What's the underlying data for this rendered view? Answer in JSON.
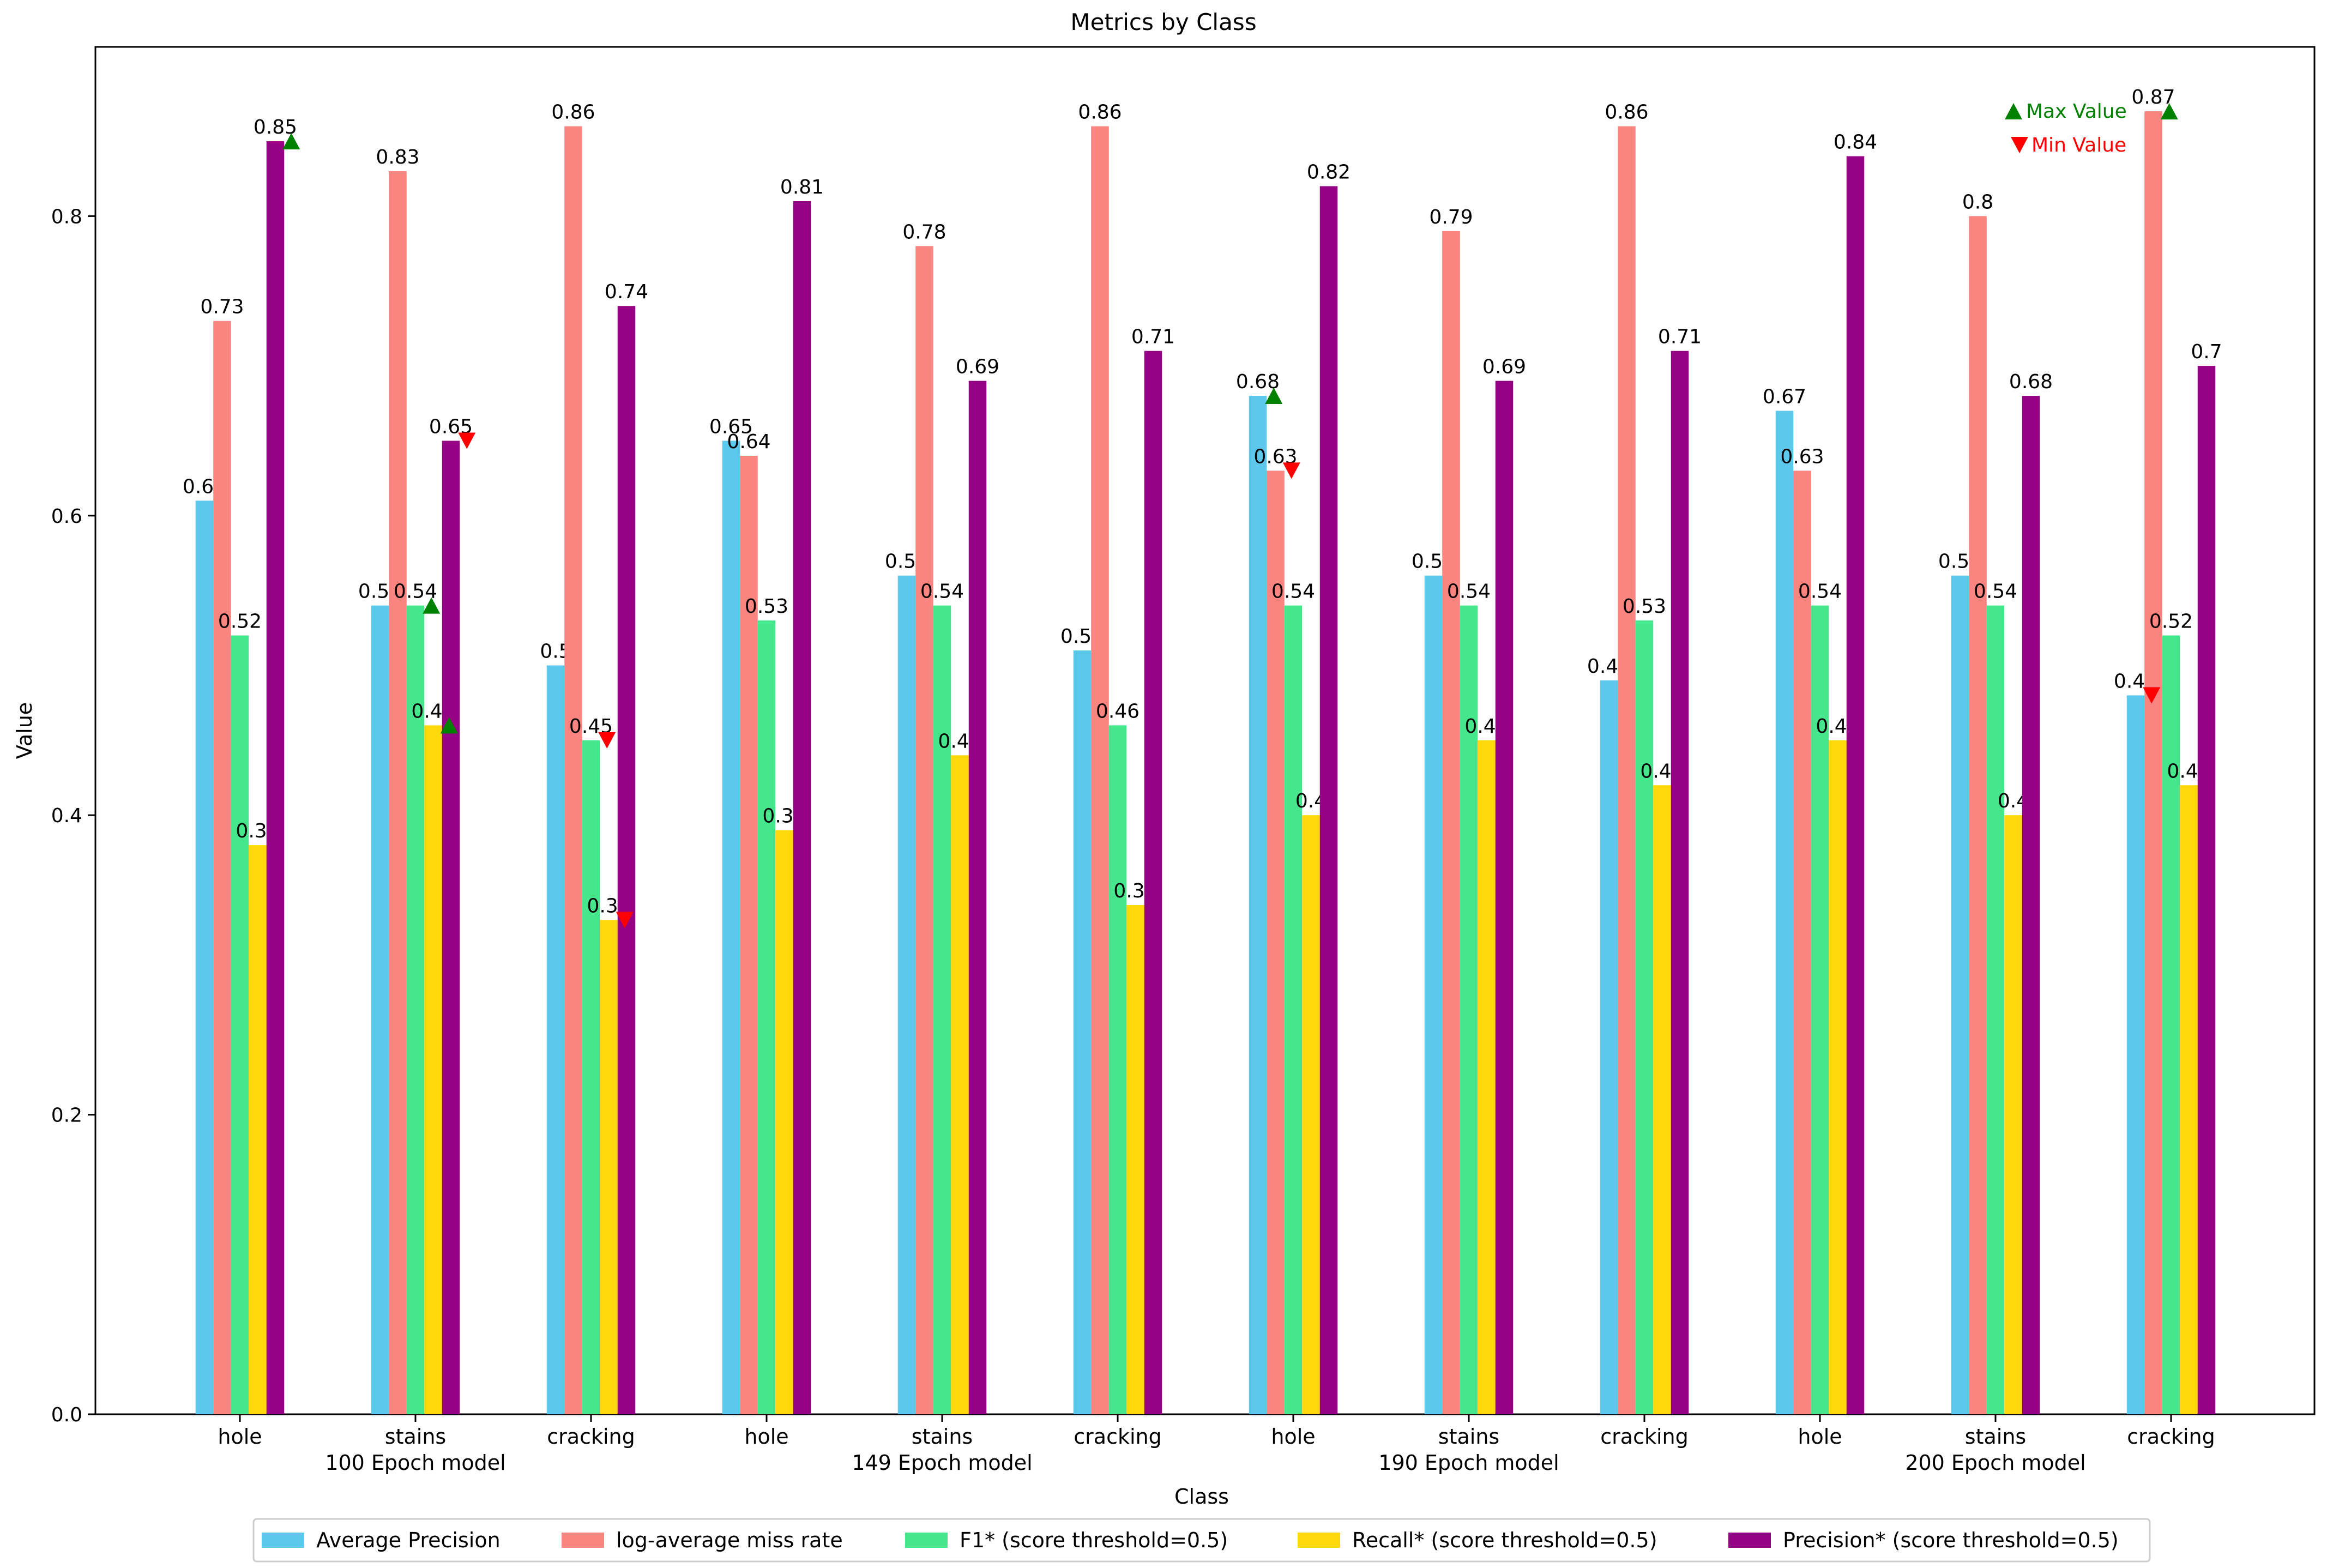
{
  "chart_data": {
    "type": "bar",
    "title": "Metrics by Class",
    "xlabel": "Class",
    "ylabel": "Value",
    "ylim": [
      0,
      0.913
    ],
    "yticks": [
      "0.0",
      "0.2",
      "0.4",
      "0.6",
      "0.8"
    ],
    "ytick_values": [
      0,
      0.2,
      0.4,
      0.6,
      0.8
    ],
    "categories": [
      "hole",
      "stains",
      "cracking",
      "hole",
      "stains",
      "cracking",
      "hole",
      "stains",
      "cracking",
      "hole",
      "stains",
      "cracking"
    ],
    "groups": [
      "100 Epoch model",
      "149 Epoch model",
      "190 Epoch model",
      "200 Epoch model"
    ],
    "series": [
      {
        "name": "Average Precision",
        "color": "#5bc8ec",
        "values": [
          0.61,
          0.54,
          0.5,
          0.65,
          0.56,
          0.51,
          0.68,
          0.56,
          0.49,
          0.67,
          0.56,
          0.48
        ]
      },
      {
        "name": "log-average miss rate",
        "color": "#fa8480",
        "values": [
          0.73,
          0.83,
          0.86,
          0.64,
          0.78,
          0.86,
          0.63,
          0.79,
          0.86,
          0.63,
          0.8,
          0.87
        ]
      },
      {
        "name": "F1* (score threshold=0.5)",
        "color": "#46e68d",
        "values": [
          0.52,
          0.54,
          0.45,
          0.53,
          0.54,
          0.46,
          0.54,
          0.54,
          0.53,
          0.54,
          0.54,
          0.52
        ]
      },
      {
        "name": "Recall* (score threshold=0.5)",
        "color": "#fdd80b",
        "values": [
          0.38,
          0.46,
          0.33,
          0.39,
          0.44,
          0.34,
          0.4,
          0.45,
          0.42,
          0.45,
          0.4,
          0.42
        ]
      },
      {
        "name": "Precision* (score threshold=0.5)",
        "color": "#950283",
        "values": [
          0.85,
          0.65,
          0.74,
          0.81,
          0.69,
          0.71,
          0.82,
          0.69,
          0.71,
          0.84,
          0.68,
          0.7
        ]
      }
    ],
    "max_markers": [
      {
        "series": 4,
        "index": 0
      },
      {
        "series": 3,
        "index": 1
      },
      {
        "series": 2,
        "index": 1
      },
      {
        "series": 0,
        "index": 6
      },
      {
        "series": 1,
        "index": 11
      }
    ],
    "min_markers": [
      {
        "series": 4,
        "index": 1
      },
      {
        "series": 2,
        "index": 2
      },
      {
        "series": 3,
        "index": 2
      },
      {
        "series": 1,
        "index": 6
      },
      {
        "series": 0,
        "index": 11
      }
    ],
    "marker_legend": {
      "max_label": "Max Value",
      "min_label": "Min Value",
      "max_color": "#008000",
      "min_color": "#ff0000"
    },
    "legend_position": "bottom-center"
  }
}
